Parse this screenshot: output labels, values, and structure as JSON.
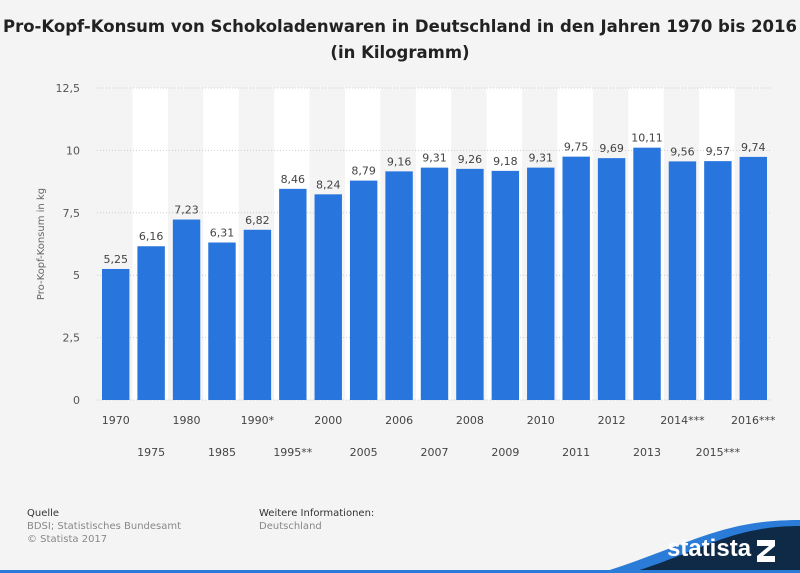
{
  "chart_data": {
    "type": "bar",
    "title": "Pro-Kopf-Konsum von Schokoladenwaren in Deutschland in den Jahren 1970 bis 2016 (in Kilogramm)",
    "xlabel": "",
    "ylabel": "Pro-Kopf-Konsum in kg",
    "ylim": [
      0,
      12.5
    ],
    "yticks": [
      "0",
      "2,5",
      "5",
      "7,5",
      "10",
      "12,5"
    ],
    "grid": true,
    "categories": [
      "1970",
      "1975",
      "1980",
      "1985",
      "1990*",
      "1995**",
      "2000",
      "2005",
      "2006",
      "2007",
      "2008",
      "2009",
      "2010",
      "2011",
      "2012",
      "2013",
      "2014***",
      "2015***",
      "2016***"
    ],
    "values": [
      5.25,
      6.16,
      7.23,
      6.31,
      6.82,
      8.46,
      8.24,
      8.79,
      9.16,
      9.31,
      9.26,
      9.18,
      9.31,
      9.75,
      9.69,
      10.11,
      9.56,
      9.57,
      9.74
    ],
    "data_labels": [
      "5,25",
      "6,16",
      "7,23",
      "6,31",
      "6,82",
      "8,46",
      "8,24",
      "8,79",
      "9,16",
      "9,31",
      "9,26",
      "9,18",
      "9,31",
      "9,75",
      "9,69",
      "10,11",
      "9,56",
      "9,57",
      "9,74"
    ],
    "bar_color": "#2876dd"
  },
  "footer": {
    "source_heading": "Quelle",
    "source": "BDSI; Statistisches Bundesamt",
    "copyright": "© Statista 2017",
    "info_heading": "Weitere Informationen:",
    "info": "Deutschland",
    "logo": "statista"
  }
}
